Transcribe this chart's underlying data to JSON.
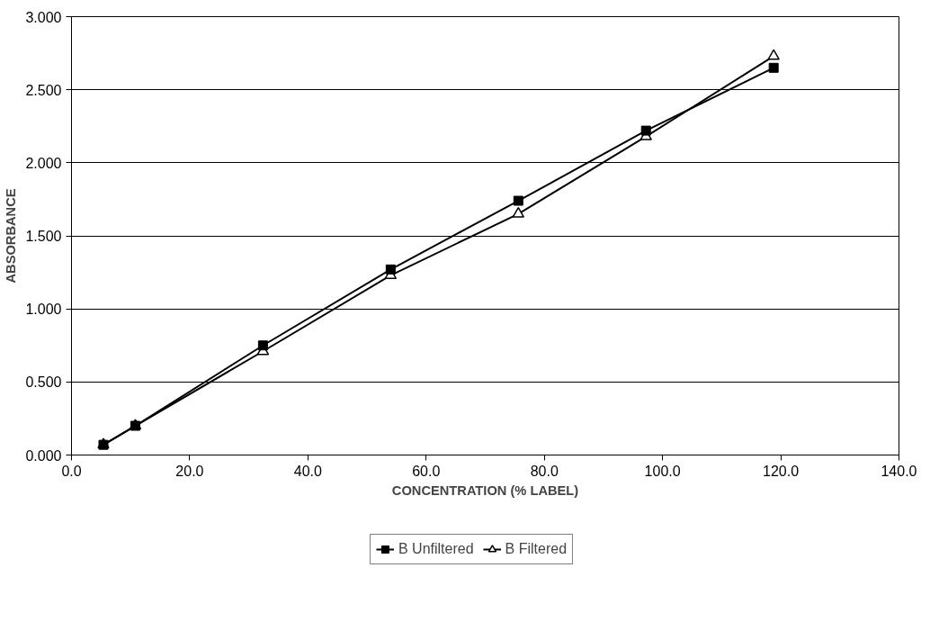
{
  "chart_data": {
    "type": "line",
    "xlabel": "CONCENTRATION (% LABEL)",
    "ylabel": "ABSORBANCE",
    "x": [
      5.4,
      10.8,
      32.4,
      54.0,
      75.6,
      97.2,
      118.8
    ],
    "series": [
      {
        "name": "B Unfiltered",
        "color": "#000000",
        "marker": "square",
        "values": [
          0.07,
          0.2,
          0.75,
          1.27,
          1.74,
          2.22,
          2.65
        ]
      },
      {
        "name": "B Filtered",
        "color": "#000000",
        "marker": "triangle",
        "values": [
          0.07,
          0.2,
          0.71,
          1.23,
          1.65,
          2.18,
          2.73
        ]
      }
    ],
    "xlim": [
      0,
      140
    ],
    "xticks": [
      {
        "value": 0,
        "label": "0.0"
      },
      {
        "value": 20,
        "label": "20.0"
      },
      {
        "value": 40,
        "label": "40.0"
      },
      {
        "value": 60,
        "label": "60.0"
      },
      {
        "value": 80,
        "label": "80.0"
      },
      {
        "value": 100,
        "label": "100.0"
      },
      {
        "value": 120,
        "label": "120.0"
      },
      {
        "value": 140,
        "label": "140.0"
      }
    ],
    "ylim": [
      0,
      3
    ],
    "yticks": [
      {
        "value": 0,
        "label": "0.000"
      },
      {
        "value": 0.5,
        "label": "0.500"
      },
      {
        "value": 1,
        "label": "1.000"
      },
      {
        "value": 1.5,
        "label": "1.500"
      },
      {
        "value": 2,
        "label": "2.000"
      },
      {
        "value": 2.5,
        "label": "2.500"
      },
      {
        "value": 3,
        "label": "3.000"
      }
    ],
    "grid": "y",
    "legend": "bottom",
    "line_style": "solid"
  }
}
